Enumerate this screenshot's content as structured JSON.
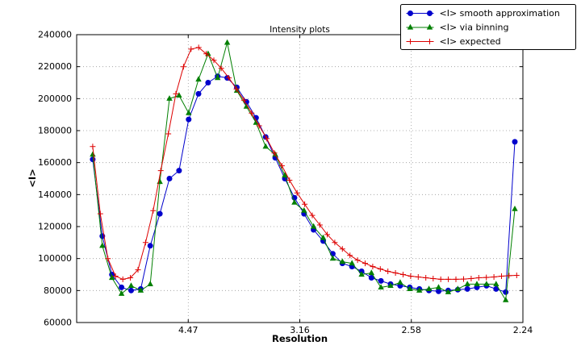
{
  "chart_data": {
    "type": "line",
    "title": "Intensity plots",
    "xlabel": "Resolution",
    "ylabel": "<I>",
    "grid": {
      "visible": true,
      "style": "dotted",
      "color": "#999999"
    },
    "x_axis": {
      "label": "Resolution",
      "scale": "linear in 1/d^2 (labels are d in Angstrom)",
      "range": [
        0,
        0.2
      ],
      "ticks": [
        {
          "value": 0.05,
          "label": "4.47"
        },
        {
          "value": 0.1,
          "label": "3.16"
        },
        {
          "value": 0.15,
          "label": "2.58"
        },
        {
          "value": 0.2,
          "label": "2.24"
        }
      ]
    },
    "y_axis": {
      "label": "<I>",
      "range": [
        60000,
        240000
      ],
      "tick_step": 20000,
      "ticks": [
        {
          "value": 60000,
          "label": "60000"
        },
        {
          "value": 80000,
          "label": "80000"
        },
        {
          "value": 100000,
          "label": "100000"
        },
        {
          "value": 120000,
          "label": "120000"
        },
        {
          "value": 140000,
          "label": "140000"
        },
        {
          "value": 160000,
          "label": "160000"
        },
        {
          "value": 180000,
          "label": "180000"
        },
        {
          "value": 200000,
          "label": "200000"
        },
        {
          "value": 220000,
          "label": "220000"
        },
        {
          "value": 240000,
          "label": "240000"
        }
      ]
    },
    "legend": {
      "position": "upper right, overlapping top of axes",
      "entries": [
        "<I> smooth approximation",
        "<I> via binning",
        "<I> expected"
      ]
    },
    "series": [
      {
        "id": "smooth",
        "label": "<I> smooth approximation",
        "color": "#0000cc",
        "marker": "circle",
        "x": [
          0.0072,
          0.0115,
          0.0158,
          0.0201,
          0.0244,
          0.0287,
          0.033,
          0.0373,
          0.0416,
          0.0459,
          0.0502,
          0.0546,
          0.0589,
          0.0632,
          0.0675,
          0.0718,
          0.0761,
          0.0804,
          0.0847,
          0.089,
          0.0933,
          0.0976,
          0.1019,
          0.1062,
          0.1105,
          0.1148,
          0.1191,
          0.1234,
          0.1277,
          0.1321,
          0.1364,
          0.1407,
          0.145,
          0.1493,
          0.1536,
          0.1579,
          0.1622,
          0.1665,
          0.1708,
          0.1751,
          0.1794,
          0.1837,
          0.188,
          0.1923,
          0.1964
        ],
        "y": [
          162000,
          114000,
          90000,
          82000,
          80000,
          81000,
          108000,
          128000,
          150000,
          155000,
          187000,
          203000,
          210000,
          214000,
          213000,
          207000,
          198000,
          188000,
          176000,
          163000,
          150000,
          138000,
          128000,
          118000,
          111000,
          103000,
          97000,
          95000,
          92000,
          88000,
          86000,
          84000,
          83000,
          82000,
          81000,
          80000,
          79500,
          80000,
          80500,
          81000,
          82000,
          83000,
          81000,
          79000,
          173000
        ]
      },
      {
        "id": "binning",
        "label": "<I> via binning",
        "color": "#007f00",
        "marker": "triangle",
        "x": [
          0.0072,
          0.0115,
          0.0158,
          0.0201,
          0.0244,
          0.0287,
          0.033,
          0.0373,
          0.0416,
          0.0459,
          0.0502,
          0.0546,
          0.0589,
          0.0632,
          0.0675,
          0.0718,
          0.0761,
          0.0804,
          0.0847,
          0.089,
          0.0933,
          0.0976,
          0.1019,
          0.1062,
          0.1105,
          0.1148,
          0.1191,
          0.1234,
          0.1277,
          0.1321,
          0.1364,
          0.1407,
          0.145,
          0.1493,
          0.1536,
          0.1579,
          0.1622,
          0.1665,
          0.1708,
          0.1751,
          0.1794,
          0.1837,
          0.188,
          0.1923,
          0.1964
        ],
        "y": [
          165000,
          108000,
          88000,
          78000,
          83000,
          80000,
          84000,
          148000,
          200000,
          202000,
          191000,
          212000,
          228000,
          213000,
          235000,
          205000,
          195000,
          185000,
          170000,
          165000,
          152000,
          135000,
          130000,
          120000,
          113000,
          100000,
          98000,
          97000,
          90000,
          91000,
          82000,
          83000,
          85000,
          81000,
          80000,
          81000,
          82000,
          79000,
          81000,
          84000,
          84000,
          84000,
          84000,
          74000,
          131000
        ]
      },
      {
        "id": "expected",
        "label": "<I> expected",
        "color": "#dd0000",
        "marker": "plus",
        "x": [
          0.0072,
          0.0106,
          0.014,
          0.0174,
          0.0207,
          0.0241,
          0.0275,
          0.0309,
          0.0343,
          0.0377,
          0.0411,
          0.0445,
          0.0479,
          0.0513,
          0.0547,
          0.0581,
          0.0615,
          0.0648,
          0.0682,
          0.0716,
          0.075,
          0.0784,
          0.0818,
          0.0852,
          0.0886,
          0.092,
          0.0954,
          0.0988,
          0.1022,
          0.1056,
          0.109,
          0.1123,
          0.1157,
          0.1191,
          0.1225,
          0.1259,
          0.1293,
          0.1327,
          0.1361,
          0.1395,
          0.1429,
          0.1463,
          0.1497,
          0.1531,
          0.1565,
          0.1598,
          0.1632,
          0.1666,
          0.17,
          0.1734,
          0.1768,
          0.1802,
          0.1836,
          0.187,
          0.1904,
          0.1938,
          0.1972
        ],
        "y": [
          170000,
          128000,
          100000,
          89000,
          87000,
          88000,
          93000,
          110000,
          130000,
          155000,
          178000,
          203000,
          220000,
          231000,
          232000,
          228000,
          224000,
          219000,
          213000,
          206000,
          199000,
          191000,
          183000,
          175000,
          166000,
          158000,
          149000,
          141000,
          134000,
          127000,
          121000,
          115000,
          110000,
          106000,
          102000,
          99000,
          97000,
          95000,
          93500,
          92000,
          91000,
          90000,
          89000,
          88500,
          88000,
          87500,
          87000,
          87000,
          87000,
          87200,
          87500,
          88000,
          88200,
          88500,
          89000,
          89300,
          89500
        ]
      }
    ]
  }
}
